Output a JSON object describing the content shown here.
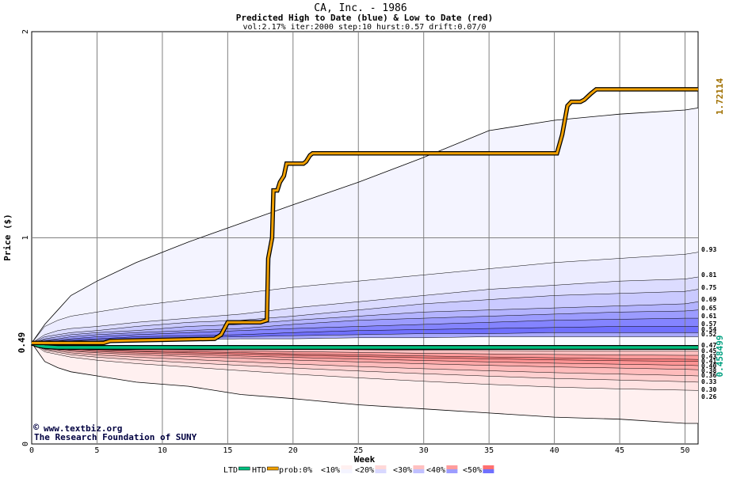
{
  "chart_data": {
    "type": "area",
    "title": "CA, Inc. - 1986",
    "subtitle": "Predicted High to Date (blue) &  Low to Date (red)",
    "params": "vol:2.17% iter:2000 step:10 hurst:0.57 drift:0.07/0",
    "xlabel": "Week",
    "ylabel": "Price ($)",
    "xlim": [
      0,
      51
    ],
    "ylim": [
      0,
      2
    ],
    "x_ticks": [
      0,
      5,
      10,
      15,
      20,
      25,
      30,
      35,
      40,
      45,
      50
    ],
    "y_ticks": [
      0,
      1,
      2
    ],
    "start_price": 0.49,
    "start_price_label": "0.49",
    "max_label": "1.72114",
    "min_label": "0.458499",
    "colors": {
      "htd": "#f0a000",
      "ltd": "#00c080",
      "max_label": "#a07000",
      "min_label": "#00a080",
      "blue_band": "#7070ff",
      "red_band": "#ff7070"
    },
    "quantile_weeks": [
      0,
      1,
      2,
      3,
      5,
      8,
      12,
      16,
      20,
      25,
      30,
      35,
      40,
      45,
      50,
      51
    ],
    "upper_quantiles": [
      {
        "label": "0.93",
        "values": [
          0.49,
          0.57,
          0.6,
          0.62,
          0.64,
          0.67,
          0.7,
          0.73,
          0.76,
          0.79,
          0.82,
          0.85,
          0.88,
          0.9,
          0.92,
          0.93
        ]
      },
      {
        "label": "0.81",
        "values": [
          0.49,
          0.53,
          0.55,
          0.56,
          0.57,
          0.59,
          0.61,
          0.63,
          0.66,
          0.69,
          0.72,
          0.75,
          0.77,
          0.79,
          0.8,
          0.81
        ]
      },
      {
        "label": "0.75",
        "values": [
          0.49,
          0.52,
          0.53,
          0.54,
          0.55,
          0.57,
          0.59,
          0.6,
          0.62,
          0.65,
          0.68,
          0.7,
          0.72,
          0.73,
          0.74,
          0.75
        ]
      },
      {
        "label": "0.69",
        "values": [
          0.49,
          0.51,
          0.52,
          0.53,
          0.54,
          0.55,
          0.57,
          0.58,
          0.6,
          0.62,
          0.64,
          0.65,
          0.66,
          0.67,
          0.68,
          0.69
        ]
      },
      {
        "label": "0.65",
        "values": [
          0.49,
          0.505,
          0.51,
          0.52,
          0.53,
          0.54,
          0.55,
          0.56,
          0.58,
          0.6,
          0.61,
          0.62,
          0.63,
          0.64,
          0.645,
          0.65
        ]
      },
      {
        "label": "0.61",
        "values": [
          0.49,
          0.5,
          0.505,
          0.51,
          0.52,
          0.53,
          0.54,
          0.55,
          0.56,
          0.57,
          0.58,
          0.59,
          0.6,
          0.605,
          0.61,
          0.61
        ]
      },
      {
        "label": "0.57",
        "values": [
          0.49,
          0.5,
          0.5,
          0.505,
          0.51,
          0.52,
          0.525,
          0.53,
          0.54,
          0.55,
          0.555,
          0.56,
          0.565,
          0.57,
          0.57,
          0.57
        ]
      },
      {
        "label": "0.54",
        "values": [
          0.49,
          0.495,
          0.5,
          0.5,
          0.505,
          0.51,
          0.515,
          0.52,
          0.525,
          0.53,
          0.535,
          0.535,
          0.54,
          0.54,
          0.54,
          0.54
        ]
      },
      {
        "label": "0.52",
        "values": [
          0.49,
          0.495,
          0.495,
          0.5,
          0.5,
          0.505,
          0.505,
          0.51,
          0.51,
          0.515,
          0.515,
          0.52,
          0.52,
          0.52,
          0.52,
          0.52
        ]
      }
    ],
    "upper_extreme": [
      0.49,
      0.58,
      0.65,
      0.72,
      0.79,
      0.88,
      0.98,
      1.07,
      1.16,
      1.27,
      1.39,
      1.52,
      1.57,
      1.6,
      1.62,
      1.63
    ],
    "lower_quantiles": [
      {
        "label": "0.47",
        "values": [
          0.49,
          0.48,
          0.478,
          0.476,
          0.474,
          0.473,
          0.472,
          0.471,
          0.47,
          0.47,
          0.47,
          0.47,
          0.47,
          0.47,
          0.47,
          0.47
        ]
      },
      {
        "label": "0.45",
        "values": [
          0.49,
          0.475,
          0.472,
          0.47,
          0.468,
          0.466,
          0.463,
          0.461,
          0.459,
          0.457,
          0.455,
          0.453,
          0.452,
          0.451,
          0.45,
          0.45
        ]
      },
      {
        "label": "0.43",
        "values": [
          0.49,
          0.473,
          0.47,
          0.467,
          0.463,
          0.46,
          0.456,
          0.452,
          0.448,
          0.444,
          0.44,
          0.437,
          0.434,
          0.432,
          0.43,
          0.43
        ]
      },
      {
        "label": "0.41",
        "values": [
          0.49,
          0.472,
          0.467,
          0.463,
          0.458,
          0.453,
          0.448,
          0.443,
          0.437,
          0.432,
          0.427,
          0.422,
          0.418,
          0.414,
          0.411,
          0.41
        ]
      },
      {
        "label": "0.40",
        "values": [
          0.49,
          0.47,
          0.465,
          0.46,
          0.454,
          0.448,
          0.442,
          0.436,
          0.43,
          0.424,
          0.418,
          0.413,
          0.408,
          0.404,
          0.401,
          0.4
        ]
      },
      {
        "label": "0.38",
        "values": [
          0.49,
          0.468,
          0.461,
          0.455,
          0.448,
          0.441,
          0.434,
          0.427,
          0.42,
          0.412,
          0.405,
          0.398,
          0.392,
          0.387,
          0.382,
          0.38
        ]
      },
      {
        "label": "0.36",
        "values": [
          0.49,
          0.465,
          0.457,
          0.45,
          0.442,
          0.433,
          0.424,
          0.416,
          0.407,
          0.398,
          0.389,
          0.381,
          0.374,
          0.368,
          0.362,
          0.36
        ]
      },
      {
        "label": "0.33",
        "values": [
          0.49,
          0.46,
          0.451,
          0.442,
          0.432,
          0.421,
          0.41,
          0.399,
          0.388,
          0.376,
          0.365,
          0.355,
          0.346,
          0.339,
          0.332,
          0.33
        ]
      },
      {
        "label": "0.30",
        "values": [
          0.49,
          0.455,
          0.444,
          0.433,
          0.421,
          0.408,
          0.394,
          0.381,
          0.368,
          0.354,
          0.341,
          0.329,
          0.318,
          0.31,
          0.302,
          0.3
        ]
      },
      {
        "label": "0.26",
        "values": [
          0.49,
          0.447,
          0.434,
          0.421,
          0.406,
          0.39,
          0.373,
          0.356,
          0.339,
          0.321,
          0.304,
          0.289,
          0.276,
          0.267,
          0.261,
          0.26
        ]
      }
    ],
    "lower_extreme": [
      0.49,
      0.4,
      0.37,
      0.35,
      0.33,
      0.3,
      0.28,
      0.24,
      0.22,
      0.19,
      0.17,
      0.15,
      0.13,
      0.12,
      0.1,
      0.1
    ],
    "htd_series": {
      "x": [
        0,
        1,
        5.5,
        6,
        14,
        14.5,
        15,
        17.5,
        18,
        18.1,
        18.4,
        18.5,
        18.8,
        19,
        19.3,
        19.5,
        20.8,
        21,
        21.3,
        21.5,
        40.2,
        40.6,
        41,
        41.3,
        42,
        42.3,
        42.8,
        43.2,
        51
      ],
      "y": [
        0.49,
        0.49,
        0.49,
        0.5,
        0.51,
        0.53,
        0.59,
        0.59,
        0.6,
        0.9,
        1.0,
        1.23,
        1.23,
        1.27,
        1.3,
        1.36,
        1.36,
        1.37,
        1.4,
        1.41,
        1.41,
        1.5,
        1.64,
        1.66,
        1.66,
        1.67,
        1.7,
        1.72,
        1.72
      ]
    },
    "ltd_series": {
      "x": [
        0,
        0.5,
        1,
        2,
        51
      ],
      "y": [
        0.49,
        0.478,
        0.472,
        0.4685,
        0.4685
      ]
    },
    "legend": [
      {
        "key": "ltd",
        "label": "LTD"
      },
      {
        "key": "htd",
        "label": "HTD"
      },
      {
        "key": "prob",
        "label": "prob:0%"
      },
      {
        "key": "b10",
        "label": "<10%"
      },
      {
        "key": "b20",
        "label": "<20%"
      },
      {
        "key": "b30",
        "label": "<30%"
      },
      {
        "key": "b40",
        "label": "<40%"
      },
      {
        "key": "b50",
        "label": "<50%"
      }
    ],
    "credits": [
      "www.textbiz.org",
      "The Research Foundation of SUNY"
    ]
  }
}
